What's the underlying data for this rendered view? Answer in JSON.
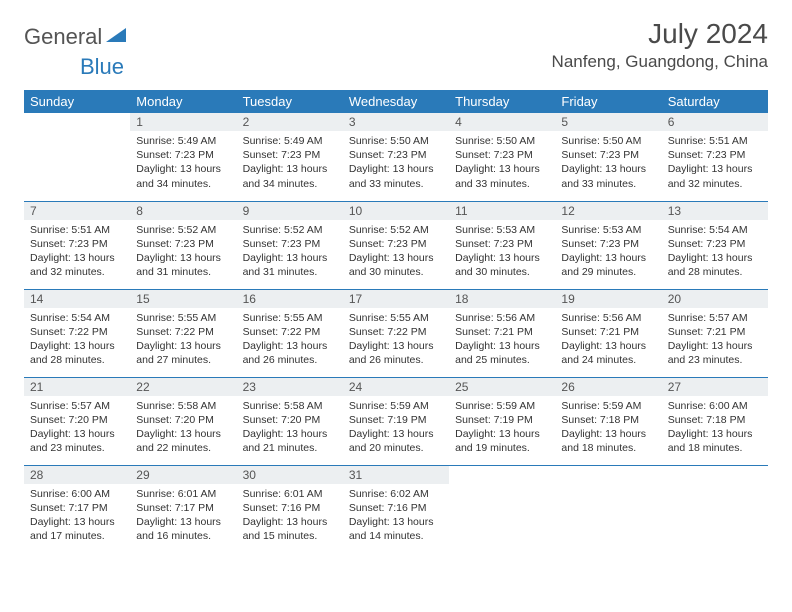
{
  "brand": {
    "text1": "General",
    "text2": "Blue"
  },
  "title": "July 2024",
  "location": "Nanfeng, Guangdong, China",
  "colors": {
    "header_bg": "#2a7ab9",
    "header_text": "#ffffff",
    "daynum_bg": "#eceff1",
    "border": "#2a7ab9"
  },
  "dayNames": [
    "Sunday",
    "Monday",
    "Tuesday",
    "Wednesday",
    "Thursday",
    "Friday",
    "Saturday"
  ],
  "weeks": [
    [
      {
        "n": "",
        "sr": "",
        "ss": "",
        "dl": "",
        "empty": true
      },
      {
        "n": "1",
        "sr": "Sunrise: 5:49 AM",
        "ss": "Sunset: 7:23 PM",
        "dl": "Daylight: 13 hours and 34 minutes."
      },
      {
        "n": "2",
        "sr": "Sunrise: 5:49 AM",
        "ss": "Sunset: 7:23 PM",
        "dl": "Daylight: 13 hours and 34 minutes."
      },
      {
        "n": "3",
        "sr": "Sunrise: 5:50 AM",
        "ss": "Sunset: 7:23 PM",
        "dl": "Daylight: 13 hours and 33 minutes."
      },
      {
        "n": "4",
        "sr": "Sunrise: 5:50 AM",
        "ss": "Sunset: 7:23 PM",
        "dl": "Daylight: 13 hours and 33 minutes."
      },
      {
        "n": "5",
        "sr": "Sunrise: 5:50 AM",
        "ss": "Sunset: 7:23 PM",
        "dl": "Daylight: 13 hours and 33 minutes."
      },
      {
        "n": "6",
        "sr": "Sunrise: 5:51 AM",
        "ss": "Sunset: 7:23 PM",
        "dl": "Daylight: 13 hours and 32 minutes."
      }
    ],
    [
      {
        "n": "7",
        "sr": "Sunrise: 5:51 AM",
        "ss": "Sunset: 7:23 PM",
        "dl": "Daylight: 13 hours and 32 minutes."
      },
      {
        "n": "8",
        "sr": "Sunrise: 5:52 AM",
        "ss": "Sunset: 7:23 PM",
        "dl": "Daylight: 13 hours and 31 minutes."
      },
      {
        "n": "9",
        "sr": "Sunrise: 5:52 AM",
        "ss": "Sunset: 7:23 PM",
        "dl": "Daylight: 13 hours and 31 minutes."
      },
      {
        "n": "10",
        "sr": "Sunrise: 5:52 AM",
        "ss": "Sunset: 7:23 PM",
        "dl": "Daylight: 13 hours and 30 minutes."
      },
      {
        "n": "11",
        "sr": "Sunrise: 5:53 AM",
        "ss": "Sunset: 7:23 PM",
        "dl": "Daylight: 13 hours and 30 minutes."
      },
      {
        "n": "12",
        "sr": "Sunrise: 5:53 AM",
        "ss": "Sunset: 7:23 PM",
        "dl": "Daylight: 13 hours and 29 minutes."
      },
      {
        "n": "13",
        "sr": "Sunrise: 5:54 AM",
        "ss": "Sunset: 7:23 PM",
        "dl": "Daylight: 13 hours and 28 minutes."
      }
    ],
    [
      {
        "n": "14",
        "sr": "Sunrise: 5:54 AM",
        "ss": "Sunset: 7:22 PM",
        "dl": "Daylight: 13 hours and 28 minutes."
      },
      {
        "n": "15",
        "sr": "Sunrise: 5:55 AM",
        "ss": "Sunset: 7:22 PM",
        "dl": "Daylight: 13 hours and 27 minutes."
      },
      {
        "n": "16",
        "sr": "Sunrise: 5:55 AM",
        "ss": "Sunset: 7:22 PM",
        "dl": "Daylight: 13 hours and 26 minutes."
      },
      {
        "n": "17",
        "sr": "Sunrise: 5:55 AM",
        "ss": "Sunset: 7:22 PM",
        "dl": "Daylight: 13 hours and 26 minutes."
      },
      {
        "n": "18",
        "sr": "Sunrise: 5:56 AM",
        "ss": "Sunset: 7:21 PM",
        "dl": "Daylight: 13 hours and 25 minutes."
      },
      {
        "n": "19",
        "sr": "Sunrise: 5:56 AM",
        "ss": "Sunset: 7:21 PM",
        "dl": "Daylight: 13 hours and 24 minutes."
      },
      {
        "n": "20",
        "sr": "Sunrise: 5:57 AM",
        "ss": "Sunset: 7:21 PM",
        "dl": "Daylight: 13 hours and 23 minutes."
      }
    ],
    [
      {
        "n": "21",
        "sr": "Sunrise: 5:57 AM",
        "ss": "Sunset: 7:20 PM",
        "dl": "Daylight: 13 hours and 23 minutes."
      },
      {
        "n": "22",
        "sr": "Sunrise: 5:58 AM",
        "ss": "Sunset: 7:20 PM",
        "dl": "Daylight: 13 hours and 22 minutes."
      },
      {
        "n": "23",
        "sr": "Sunrise: 5:58 AM",
        "ss": "Sunset: 7:20 PM",
        "dl": "Daylight: 13 hours and 21 minutes."
      },
      {
        "n": "24",
        "sr": "Sunrise: 5:59 AM",
        "ss": "Sunset: 7:19 PM",
        "dl": "Daylight: 13 hours and 20 minutes."
      },
      {
        "n": "25",
        "sr": "Sunrise: 5:59 AM",
        "ss": "Sunset: 7:19 PM",
        "dl": "Daylight: 13 hours and 19 minutes."
      },
      {
        "n": "26",
        "sr": "Sunrise: 5:59 AM",
        "ss": "Sunset: 7:18 PM",
        "dl": "Daylight: 13 hours and 18 minutes."
      },
      {
        "n": "27",
        "sr": "Sunrise: 6:00 AM",
        "ss": "Sunset: 7:18 PM",
        "dl": "Daylight: 13 hours and 18 minutes."
      }
    ],
    [
      {
        "n": "28",
        "sr": "Sunrise: 6:00 AM",
        "ss": "Sunset: 7:17 PM",
        "dl": "Daylight: 13 hours and 17 minutes."
      },
      {
        "n": "29",
        "sr": "Sunrise: 6:01 AM",
        "ss": "Sunset: 7:17 PM",
        "dl": "Daylight: 13 hours and 16 minutes."
      },
      {
        "n": "30",
        "sr": "Sunrise: 6:01 AM",
        "ss": "Sunset: 7:16 PM",
        "dl": "Daylight: 13 hours and 15 minutes."
      },
      {
        "n": "31",
        "sr": "Sunrise: 6:02 AM",
        "ss": "Sunset: 7:16 PM",
        "dl": "Daylight: 13 hours and 14 minutes."
      },
      {
        "n": "",
        "sr": "",
        "ss": "",
        "dl": "",
        "empty": true
      },
      {
        "n": "",
        "sr": "",
        "ss": "",
        "dl": "",
        "empty": true
      },
      {
        "n": "",
        "sr": "",
        "ss": "",
        "dl": "",
        "empty": true
      }
    ]
  ]
}
